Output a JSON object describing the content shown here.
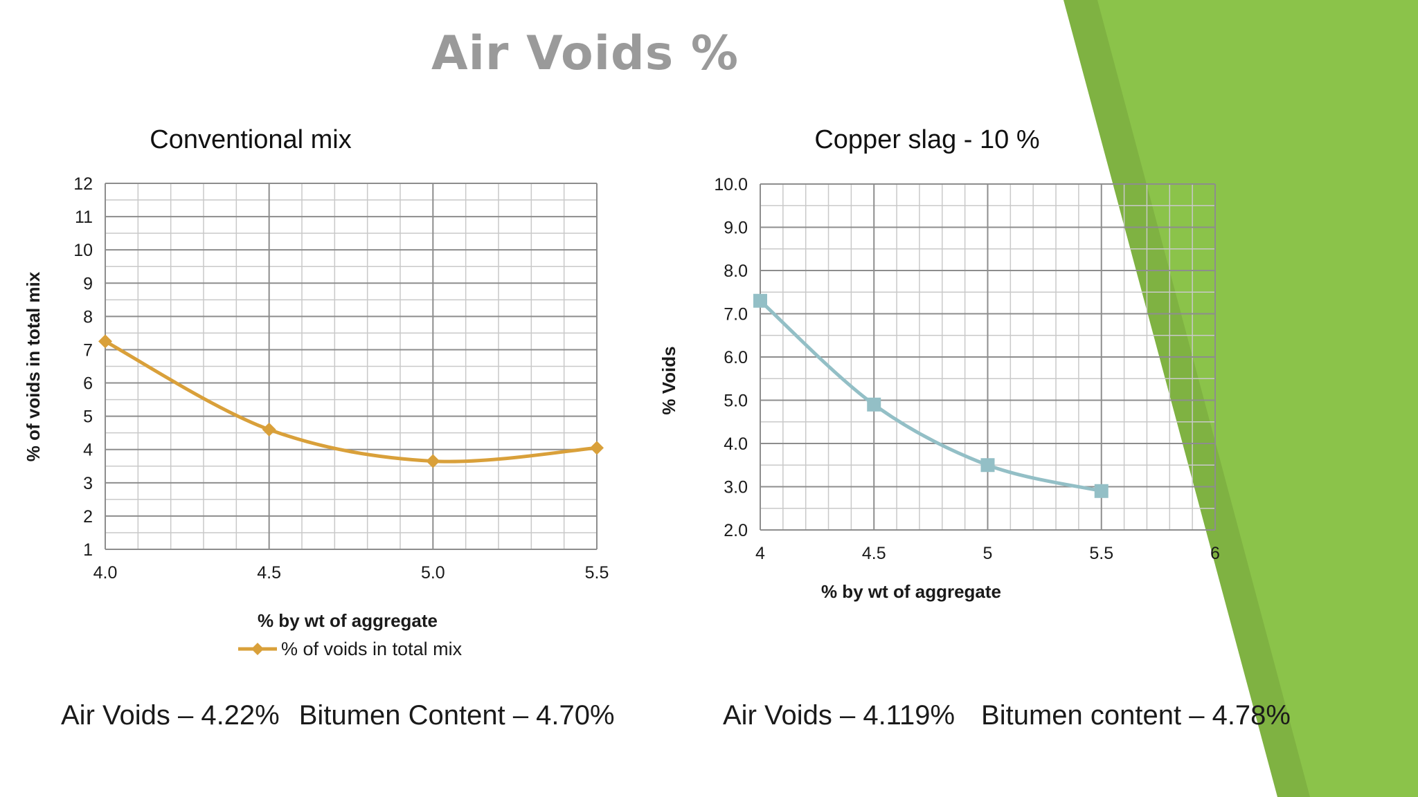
{
  "slide": {
    "title": "Air Voids %",
    "accent_color": "#8bc34a"
  },
  "chart_data": [
    {
      "type": "line",
      "title": "Conventional mix",
      "xlabel": "% by wt of aggregate",
      "ylabel": "% of voids in total mix",
      "xlim": [
        4.0,
        5.5
      ],
      "ylim": [
        1,
        12
      ],
      "x_ticks": [
        "4.0",
        "4.5",
        "5.0",
        "5.5"
      ],
      "y_ticks": [
        "1",
        "2",
        "3",
        "4",
        "5",
        "6",
        "7",
        "8",
        "9",
        "10",
        "11",
        "12"
      ],
      "grid": true,
      "legend": "bottom",
      "series": [
        {
          "name": "% of voids in total mix",
          "color": "#d9a03a",
          "marker": "diamond",
          "x": [
            4.0,
            4.5,
            5.0,
            5.5
          ],
          "y": [
            7.25,
            4.6,
            3.65,
            4.05
          ]
        }
      ]
    },
    {
      "type": "line",
      "title": "Copper slag  - 10 %",
      "xlabel": "% by wt of aggregate",
      "ylabel": "% Voids",
      "xlim": [
        4,
        6
      ],
      "ylim": [
        2.0,
        10.0
      ],
      "x_ticks": [
        "4",
        "4.5",
        "5",
        "5.5",
        "6"
      ],
      "y_ticks": [
        "2.0",
        "3.0",
        "4.0",
        "5.0",
        "6.0",
        "7.0",
        "8.0",
        "9.0",
        "10.0"
      ],
      "grid": true,
      "legend": "none",
      "series": [
        {
          "color": "#93bfc6",
          "marker": "square",
          "x": [
            4,
            4.5,
            5,
            5.5
          ],
          "y": [
            7.3,
            4.9,
            3.5,
            2.9
          ]
        }
      ]
    }
  ],
  "summaries": [
    {
      "air_voids": "Air Voids – 4.22%",
      "bitumen": "Bitumen Content – 4.70%"
    },
    {
      "air_voids": "Air Voids – 4.119%",
      "bitumen": "Bitumen content – 4.78%"
    }
  ]
}
